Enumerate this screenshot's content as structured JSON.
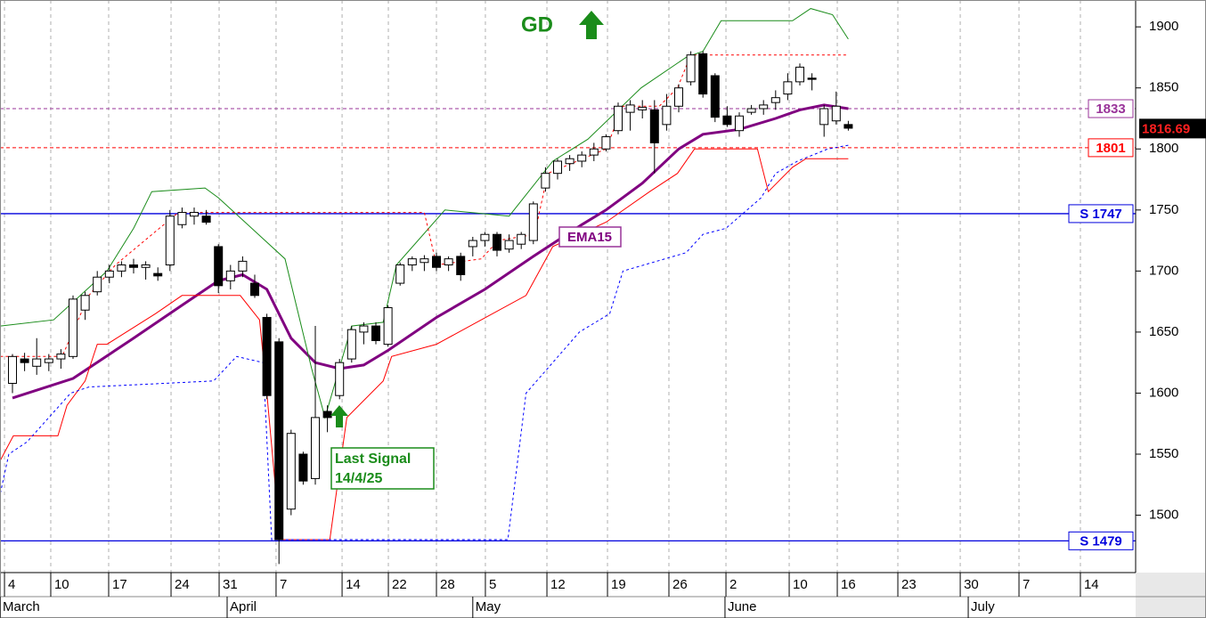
{
  "chart_data": {
    "type": "candlestick",
    "candles": {
      "x": [
        0,
        1,
        2,
        3,
        4,
        5,
        6,
        7,
        8,
        9,
        10,
        11,
        12,
        13,
        14,
        15,
        16,
        17,
        18,
        19,
        20,
        21,
        22,
        23,
        24,
        25,
        26,
        27,
        28,
        29,
        30,
        31,
        32,
        33,
        34,
        35,
        36,
        37,
        38,
        39,
        40,
        41,
        42,
        43,
        44,
        45,
        46,
        47,
        48,
        49,
        50,
        51,
        52,
        53,
        54,
        55,
        56,
        57,
        58,
        59,
        60,
        61,
        62,
        63,
        64,
        65,
        66,
        67,
        68,
        69
      ],
      "open": [
        1608,
        1628,
        1622,
        1625,
        1628,
        1630,
        1668,
        1683,
        1695,
        1700,
        1705,
        1703,
        1698,
        1705,
        1738,
        1745,
        1745,
        1720,
        1692,
        1700,
        1690,
        1662,
        1642,
        1505,
        1550,
        1530,
        1585,
        1598,
        1628,
        1650,
        1655,
        1640,
        1690,
        1705,
        1707,
        1712,
        1705,
        1712,
        1720,
        1725,
        1730,
        1718,
        1722,
        1725,
        1768,
        1780,
        1788,
        1790,
        1795,
        1800,
        1815,
        1830,
        1832,
        1832,
        1820,
        1835,
        1855,
        1878,
        1860,
        1827,
        1815,
        1830,
        1833,
        1838,
        1845,
        1855,
        1858,
        1820,
        1823,
        1820
      ],
      "high": [
        1632,
        1633,
        1645,
        1632,
        1636,
        1680,
        1683,
        1700,
        1705,
        1708,
        1710,
        1708,
        1703,
        1750,
        1752,
        1752,
        1750,
        1722,
        1705,
        1712,
        1697,
        1665,
        1645,
        1570,
        1552,
        1655,
        1590,
        1628,
        1655,
        1658,
        1658,
        1672,
        1707,
        1712,
        1713,
        1715,
        1712,
        1715,
        1728,
        1732,
        1732,
        1730,
        1732,
        1757,
        1785,
        1792,
        1795,
        1798,
        1805,
        1812,
        1838,
        1840,
        1840,
        1840,
        1845,
        1853,
        1880,
        1880,
        1862,
        1835,
        1830,
        1836,
        1840,
        1848,
        1862,
        1870,
        1862,
        1836,
        1847,
        1823
      ],
      "low": [
        1600,
        1618,
        1615,
        1618,
        1620,
        1628,
        1660,
        1680,
        1690,
        1695,
        1698,
        1693,
        1692,
        1700,
        1735,
        1738,
        1738,
        1682,
        1685,
        1695,
        1678,
        1595,
        1460,
        1500,
        1525,
        1525,
        1568,
        1595,
        1625,
        1640,
        1640,
        1638,
        1688,
        1700,
        1700,
        1700,
        1700,
        1692,
        1712,
        1720,
        1712,
        1715,
        1718,
        1722,
        1765,
        1775,
        1782,
        1785,
        1790,
        1798,
        1812,
        1815,
        1825,
        1780,
        1815,
        1830,
        1852,
        1842,
        1822,
        1818,
        1810,
        1828,
        1828,
        1832,
        1840,
        1852,
        1848,
        1810,
        1820,
        1815
      ],
      "close": [
        1630,
        1625,
        1628,
        1628,
        1632,
        1677,
        1680,
        1695,
        1700,
        1705,
        1703,
        1705,
        1696,
        1745,
        1748,
        1748,
        1740,
        1688,
        1700,
        1708,
        1680,
        1598,
        1480,
        1567,
        1528,
        1580,
        1580,
        1625,
        1652,
        1655,
        1643,
        1670,
        1705,
        1710,
        1710,
        1703,
        1710,
        1697,
        1725,
        1730,
        1717,
        1725,
        1730,
        1755,
        1780,
        1790,
        1792,
        1795,
        1800,
        1810,
        1835,
        1836,
        1834,
        1805,
        1835,
        1850,
        1877,
        1845,
        1826,
        1820,
        1827,
        1833,
        1836,
        1842,
        1855,
        1867,
        1857,
        1833,
        1835,
        1817
      ]
    },
    "lines": [
      {
        "name": "EMA15",
        "color": "#800080",
        "style": "thick",
        "x": [
          0,
          5,
          10,
          14,
          17,
          19,
          21,
          23,
          25,
          27,
          29,
          31,
          35,
          39,
          43,
          47,
          49,
          52,
          55,
          57,
          60,
          63,
          65,
          67,
          69
        ],
        "values": [
          1596,
          1612,
          1645,
          1672,
          1692,
          1697,
          1685,
          1645,
          1625,
          1620,
          1623,
          1635,
          1662,
          1685,
          1712,
          1738,
          1750,
          1772,
          1800,
          1812,
          1816,
          1825,
          1832,
          1836,
          1833
        ]
      },
      {
        "color": "#1a8c1a",
        "style": "solid",
        "x": [
          -1,
          3.4,
          7.8,
          10,
          11.5,
          15.9,
          17,
          20.3,
          22.5,
          24.7,
          25.8,
          28,
          30.6,
          31.7,
          35.7,
          41,
          44.6,
          47.5,
          51.9,
          55.6,
          57,
          58.5,
          64.4,
          65.9,
          67.7,
          69
        ],
        "values": [
          1655,
          1660,
          1700,
          1735,
          1765,
          1768,
          1760,
          1730,
          1710,
          1620,
          1580,
          1655,
          1658,
          1705,
          1750,
          1745,
          1790,
          1808,
          1850,
          1875,
          1880,
          1905,
          1905,
          1915,
          1910,
          1890
        ]
      },
      {
        "color": "#ff0000",
        "style": "solid",
        "x": [
          -1,
          0.07,
          3.75,
          4.5,
          6,
          7,
          7.8,
          11.8,
          14,
          18.8,
          20.4,
          21,
          22.1,
          26.2,
          27.6,
          30.6,
          31.3,
          35,
          38.7,
          42.4,
          44.6,
          49,
          52.6,
          54.9,
          56.3,
          61.5,
          62.4,
          64.4,
          65.5,
          69
        ],
        "values": [
          1545,
          1565,
          1565,
          1590,
          1610,
          1640,
          1640,
          1665,
          1680,
          1680,
          1660,
          1600,
          1480,
          1480,
          1580,
          1610,
          1630,
          1640,
          1660,
          1680,
          1720,
          1740,
          1765,
          1780,
          1800,
          1800,
          1765,
          1785,
          1792,
          1792
        ]
      },
      {
        "color": "#0000ff",
        "style": "dotted",
        "x": [
          -1,
          -0.3,
          1.2,
          4.8,
          6.3,
          16.6,
          18.5,
          20.7,
          21.4,
          40.9,
          42.4,
          46.8,
          49.3,
          50.4,
          55.6,
          57,
          58.9,
          61.8,
          63,
          64.8,
          67.3,
          69
        ],
        "values": [
          1518,
          1550,
          1560,
          1600,
          1605,
          1610,
          1630,
          1625,
          1480,
          1480,
          1600,
          1650,
          1665,
          1700,
          1715,
          1730,
          1735,
          1760,
          1780,
          1790,
          1800,
          1803
        ]
      },
      {
        "color": "#ff0000",
        "style": "dotted",
        "x": [
          -1,
          4.1,
          6.3,
          8.5,
          13.7,
          34,
          35,
          38.7,
          40.1,
          43.1,
          44.2,
          49,
          50.4,
          53.4,
          54.9,
          56,
          69
        ],
        "values": [
          1630,
          1630,
          1680,
          1705,
          1748,
          1748,
          1705,
          1710,
          1725,
          1730,
          1780,
          1800,
          1835,
          1835,
          1850,
          1877,
          1877
        ]
      }
    ],
    "levels": [
      {
        "value": 1747,
        "label": "S 1747",
        "color": "#0000dd",
        "style": "solid"
      },
      {
        "value": 1479,
        "label": "S 1479",
        "color": "#0000dd",
        "style": "solid"
      },
      {
        "value": 1833,
        "label": "1833",
        "color": "#993399",
        "style": "dashed"
      },
      {
        "value": 1801,
        "label": "1801",
        "color": "#ff0000",
        "style": "dashed"
      }
    ],
    "last_price": 1816.69,
    "annotations": {
      "signal_name": "GD",
      "ema_label": "EMA15",
      "signal_text": "Last Signal",
      "signal_date": "14/4/25"
    },
    "xlim": [
      -1.03,
      92.72
    ],
    "ylim": [
      1453,
      1922
    ],
    "yticks": [
      1500,
      1550,
      1600,
      1650,
      1700,
      1750,
      1800,
      1850,
      1900
    ],
    "xticks": [
      {
        "value": -0.66,
        "label": "4"
      },
      {
        "value": 3.16,
        "label": "10"
      },
      {
        "value": 7.94,
        "label": "17"
      },
      {
        "value": 13.09,
        "label": "24"
      },
      {
        "value": 17.06,
        "label": "31"
      },
      {
        "value": 21.76,
        "label": "7"
      },
      {
        "value": 27.21,
        "label": "14"
      },
      {
        "value": 31.03,
        "label": "22"
      },
      {
        "value": 35.0,
        "label": "28"
      },
      {
        "value": 39.04,
        "label": "5"
      },
      {
        "value": 44.12,
        "label": "12"
      },
      {
        "value": 49.12,
        "label": "19"
      },
      {
        "value": 54.19,
        "label": "26"
      },
      {
        "value": 58.9,
        "label": "2"
      },
      {
        "value": 64.12,
        "label": "10"
      },
      {
        "value": 68.09,
        "label": "16"
      },
      {
        "value": 73.09,
        "label": "23"
      },
      {
        "value": 78.24,
        "label": "30"
      },
      {
        "value": 83.09,
        "label": "7"
      },
      {
        "value": 88.16,
        "label": "14"
      }
    ],
    "month_ticks": [
      {
        "value": -1.03,
        "label": "March"
      },
      {
        "value": 17.72,
        "label": "April"
      },
      {
        "value": 38.0,
        "label": "May"
      },
      {
        "value": 58.82,
        "label": "June"
      },
      {
        "value": 78.9,
        "label": "July"
      }
    ],
    "grid": true
  }
}
